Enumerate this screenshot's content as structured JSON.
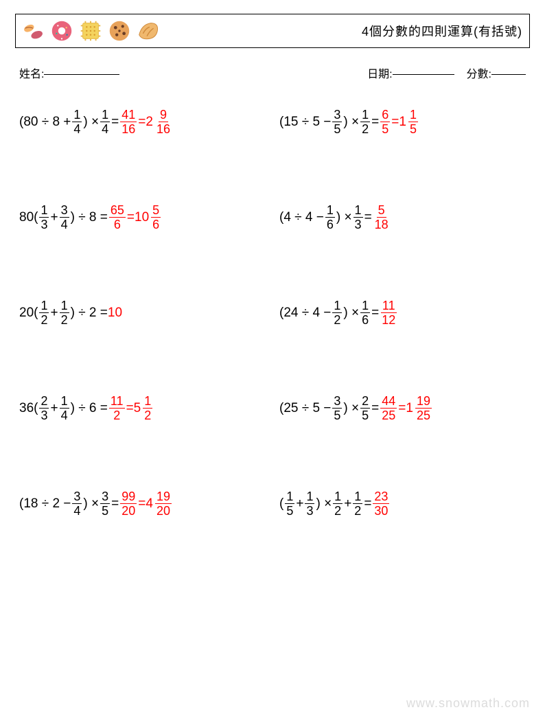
{
  "header": {
    "title": "4個分數的四則運算(有括號)",
    "icons": [
      "beans-icon",
      "donut-icon",
      "cracker-icon",
      "cookie-icon",
      "croissant-icon"
    ]
  },
  "meta": {
    "name_label": "姓名:",
    "date_label": "日期:",
    "score_label": "分數:",
    "name_underline_width": 110,
    "date_underline_width": 90,
    "score_underline_width": 50
  },
  "answer_color": "#ff0000",
  "text_color": "#000000",
  "problems": [
    {
      "parts": [
        {
          "t": "text",
          "v": "(80 ÷ 8 + "
        },
        {
          "t": "frac",
          "n": "1",
          "d": "4"
        },
        {
          "t": "text",
          "v": ") × "
        },
        {
          "t": "frac",
          "n": "1",
          "d": "4"
        },
        {
          "t": "text",
          "v": " = "
        },
        {
          "t": "frac",
          "n": "41",
          "d": "16",
          "ans": true
        },
        {
          "t": "text",
          "v": " = ",
          "ans": true
        },
        {
          "t": "mixed",
          "w": "2",
          "n": "9",
          "d": "16",
          "ans": true
        }
      ]
    },
    {
      "parts": [
        {
          "t": "text",
          "v": "(15 ÷ 5 − "
        },
        {
          "t": "frac",
          "n": "3",
          "d": "5"
        },
        {
          "t": "text",
          "v": ") × "
        },
        {
          "t": "frac",
          "n": "1",
          "d": "2"
        },
        {
          "t": "text",
          "v": " = "
        },
        {
          "t": "frac",
          "n": "6",
          "d": "5",
          "ans": true
        },
        {
          "t": "text",
          "v": " = ",
          "ans": true
        },
        {
          "t": "mixed",
          "w": "1",
          "n": "1",
          "d": "5",
          "ans": true
        }
      ]
    },
    {
      "parts": [
        {
          "t": "text",
          "v": "80("
        },
        {
          "t": "frac",
          "n": "1",
          "d": "3"
        },
        {
          "t": "text",
          "v": " + "
        },
        {
          "t": "frac",
          "n": "3",
          "d": "4"
        },
        {
          "t": "text",
          "v": ") ÷ 8 = "
        },
        {
          "t": "frac",
          "n": "65",
          "d": "6",
          "ans": true
        },
        {
          "t": "text",
          "v": " = ",
          "ans": true
        },
        {
          "t": "mixed",
          "w": "10",
          "n": "5",
          "d": "6",
          "ans": true
        }
      ]
    },
    {
      "parts": [
        {
          "t": "text",
          "v": "(4 ÷ 4 − "
        },
        {
          "t": "frac",
          "n": "1",
          "d": "6"
        },
        {
          "t": "text",
          "v": ") × "
        },
        {
          "t": "frac",
          "n": "1",
          "d": "3"
        },
        {
          "t": "text",
          "v": " = "
        },
        {
          "t": "frac",
          "n": "5",
          "d": "18",
          "ans": true
        }
      ]
    },
    {
      "parts": [
        {
          "t": "text",
          "v": "20("
        },
        {
          "t": "frac",
          "n": "1",
          "d": "2"
        },
        {
          "t": "text",
          "v": " + "
        },
        {
          "t": "frac",
          "n": "1",
          "d": "2"
        },
        {
          "t": "text",
          "v": ") ÷ 2 = "
        },
        {
          "t": "text",
          "v": "10",
          "ans": true
        }
      ]
    },
    {
      "parts": [
        {
          "t": "text",
          "v": "(24 ÷ 4 − "
        },
        {
          "t": "frac",
          "n": "1",
          "d": "2"
        },
        {
          "t": "text",
          "v": ") × "
        },
        {
          "t": "frac",
          "n": "1",
          "d": "6"
        },
        {
          "t": "text",
          "v": " = "
        },
        {
          "t": "frac",
          "n": "11",
          "d": "12",
          "ans": true
        }
      ]
    },
    {
      "parts": [
        {
          "t": "text",
          "v": "36("
        },
        {
          "t": "frac",
          "n": "2",
          "d": "3"
        },
        {
          "t": "text",
          "v": " + "
        },
        {
          "t": "frac",
          "n": "1",
          "d": "4"
        },
        {
          "t": "text",
          "v": ") ÷ 6 = "
        },
        {
          "t": "frac",
          "n": "11",
          "d": "2",
          "ans": true
        },
        {
          "t": "text",
          "v": " = ",
          "ans": true
        },
        {
          "t": "mixed",
          "w": "5",
          "n": "1",
          "d": "2",
          "ans": true
        }
      ]
    },
    {
      "parts": [
        {
          "t": "text",
          "v": "(25 ÷ 5 − "
        },
        {
          "t": "frac",
          "n": "3",
          "d": "5"
        },
        {
          "t": "text",
          "v": ") × "
        },
        {
          "t": "frac",
          "n": "2",
          "d": "5"
        },
        {
          "t": "text",
          "v": " = "
        },
        {
          "t": "frac",
          "n": "44",
          "d": "25",
          "ans": true
        },
        {
          "t": "text",
          "v": " = ",
          "ans": true
        },
        {
          "t": "mixed",
          "w": "1",
          "n": "19",
          "d": "25",
          "ans": true
        }
      ]
    },
    {
      "parts": [
        {
          "t": "text",
          "v": "(18 ÷ 2 − "
        },
        {
          "t": "frac",
          "n": "3",
          "d": "4"
        },
        {
          "t": "text",
          "v": ") × "
        },
        {
          "t": "frac",
          "n": "3",
          "d": "5"
        },
        {
          "t": "text",
          "v": " = "
        },
        {
          "t": "frac",
          "n": "99",
          "d": "20",
          "ans": true
        },
        {
          "t": "text",
          "v": " = ",
          "ans": true
        },
        {
          "t": "mixed",
          "w": "4",
          "n": "19",
          "d": "20",
          "ans": true
        }
      ]
    },
    {
      "parts": [
        {
          "t": "text",
          "v": "("
        },
        {
          "t": "frac",
          "n": "1",
          "d": "5"
        },
        {
          "t": "text",
          "v": " + "
        },
        {
          "t": "frac",
          "n": "1",
          "d": "3"
        },
        {
          "t": "text",
          "v": ") × "
        },
        {
          "t": "frac",
          "n": "1",
          "d": "2"
        },
        {
          "t": "text",
          "v": " + "
        },
        {
          "t": "frac",
          "n": "1",
          "d": "2"
        },
        {
          "t": "text",
          "v": " = "
        },
        {
          "t": "frac",
          "n": "23",
          "d": "30",
          "ans": true
        }
      ]
    }
  ],
  "watermark": "www.snowmath.com"
}
